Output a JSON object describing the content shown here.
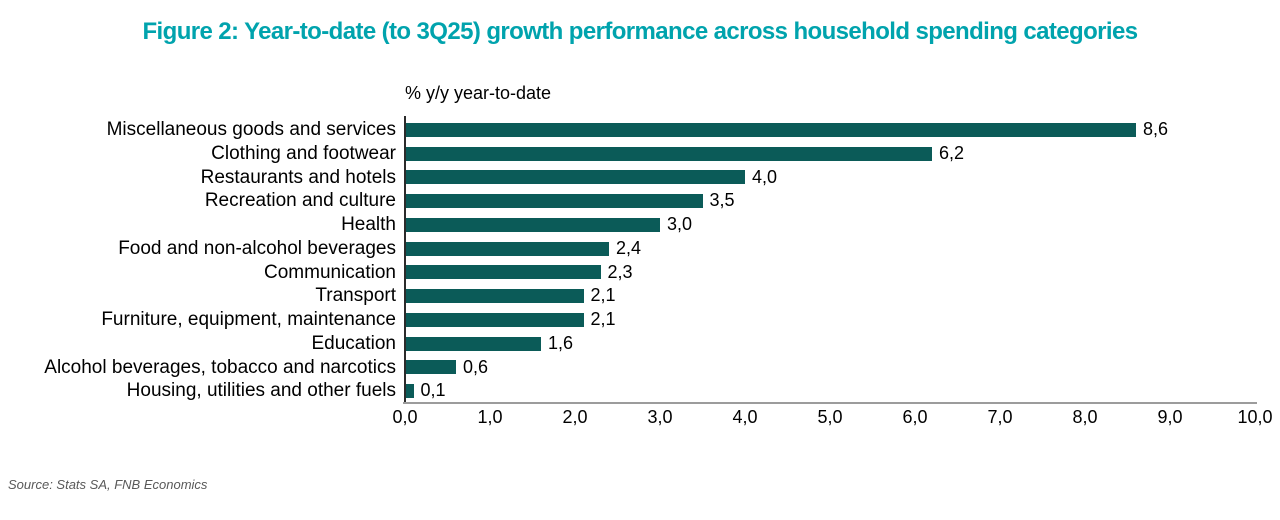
{
  "figure": {
    "source": "Source: Stats SA, FNB Economics"
  },
  "colors": {
    "title_teal": "#00a3ad",
    "bar_teal": "#0b5b58",
    "axis_gray": "#9c9c9c",
    "source_gray": "#595959"
  },
  "chart_data": {
    "type": "bar",
    "orientation": "horizontal",
    "title": "Figure 2: Year-to-date (to 3Q25) growth performance across household spending categories",
    "axis_note": "% y/y year-to-date",
    "categories": [
      "Miscellaneous goods and services",
      "Clothing and footwear",
      "Restaurants and hotels",
      "Recreation and culture",
      "Health",
      "Food and non-alcohol beverages",
      "Communication",
      "Transport",
      "Furniture, equipment, maintenance",
      "Education",
      "Alcohol beverages, tobacco and narcotics",
      "Housing, utilities and other fuels"
    ],
    "values": [
      8.6,
      6.2,
      4.0,
      3.5,
      3.0,
      2.4,
      2.3,
      2.1,
      2.1,
      1.6,
      0.6,
      0.1
    ],
    "value_labels": [
      "8,6",
      "6,2",
      "4,0",
      "3,5",
      "3,0",
      "2,4",
      "2,3",
      "2,1",
      "2,1",
      "1,6",
      "0,6",
      "0,1"
    ],
    "xlim": [
      0,
      10
    ],
    "x_tick_labels": [
      "0,0",
      "1,0",
      "2,0",
      "3,0",
      "4,0",
      "5,0",
      "6,0",
      "7,0",
      "8,0",
      "9,0",
      "10,0"
    ],
    "decimal_separator": ",",
    "legend": "none",
    "grid": "off"
  }
}
